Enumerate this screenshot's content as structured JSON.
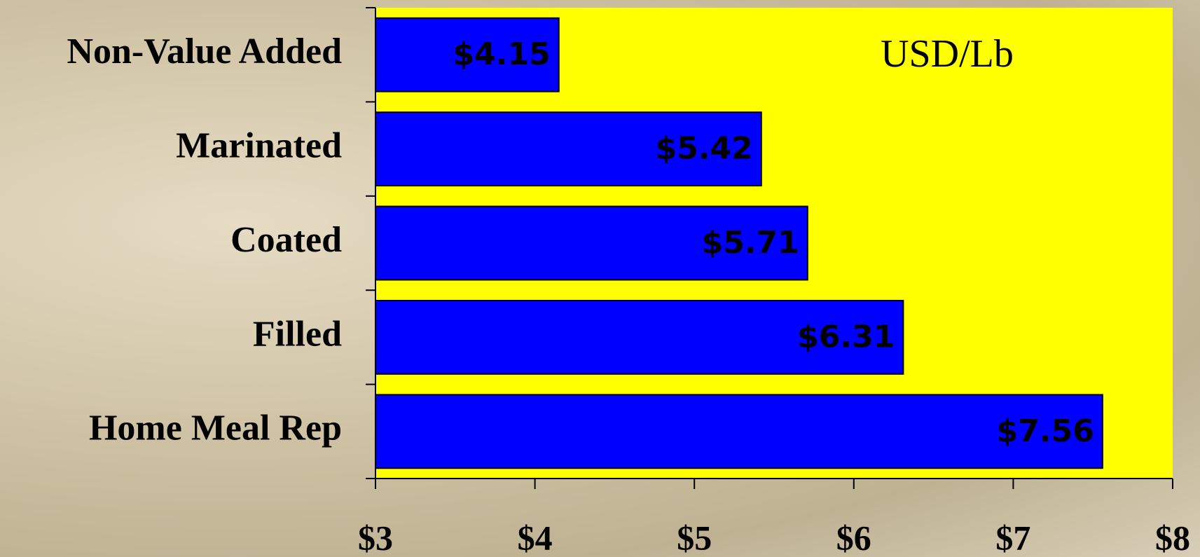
{
  "chart_data": {
    "type": "bar",
    "orientation": "horizontal",
    "annotation": "USD/Lb",
    "categories": [
      "Non-Value Added",
      "Marinated",
      "Coated",
      "Filled",
      "Home Meal Rep"
    ],
    "values": [
      4.15,
      5.42,
      5.71,
      6.31,
      7.56
    ],
    "value_labels": [
      "$4.15",
      "$5.42",
      "$5.71",
      "$6.31",
      "$7.56"
    ],
    "color": "#0000ff",
    "plot_background": "#ffff00",
    "xlim": [
      3,
      8
    ],
    "xticks": [
      {
        "value": 3,
        "label": "$3"
      },
      {
        "value": 4,
        "label": "$4"
      },
      {
        "value": 5,
        "label": "$5"
      },
      {
        "value": 6,
        "label": "$6"
      },
      {
        "value": 7,
        "label": "$7"
      },
      {
        "value": 8,
        "label": "$8"
      }
    ],
    "grid": false
  }
}
